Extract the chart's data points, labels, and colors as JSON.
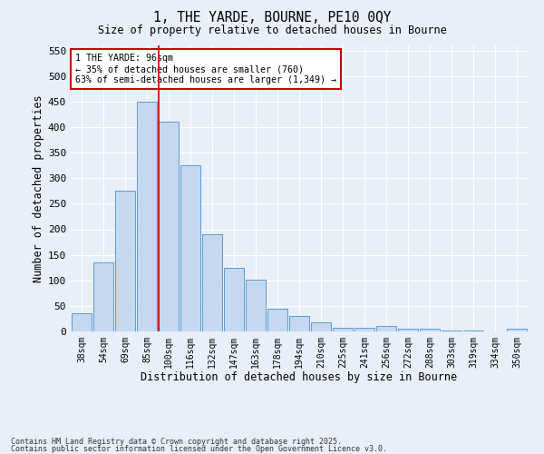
{
  "title_line1": "1, THE YARDE, BOURNE, PE10 0QY",
  "title_line2": "Size of property relative to detached houses in Bourne",
  "xlabel": "Distribution of detached houses by size in Bourne",
  "ylabel": "Number of detached properties",
  "categories": [
    "38sqm",
    "54sqm",
    "69sqm",
    "85sqm",
    "100sqm",
    "116sqm",
    "132sqm",
    "147sqm",
    "163sqm",
    "178sqm",
    "194sqm",
    "210sqm",
    "225sqm",
    "241sqm",
    "256sqm",
    "272sqm",
    "288sqm",
    "303sqm",
    "319sqm",
    "334sqm",
    "350sqm"
  ],
  "values": [
    35,
    135,
    275,
    450,
    410,
    325,
    190,
    125,
    102,
    45,
    30,
    18,
    8,
    8,
    10,
    5,
    5,
    2,
    2,
    0,
    6
  ],
  "bar_color": "#c5d8f0",
  "bar_edge_color": "#5b9bd5",
  "annotation_text": "1 THE YARDE: 96sqm\n← 35% of detached houses are smaller (760)\n63% of semi-detached houses are larger (1,349) →",
  "annotation_box_color": "#ffffff",
  "annotation_box_edge": "#cc0000",
  "vline_x": 3.55,
  "vline_color": "#cc0000",
  "ylim": [
    0,
    560
  ],
  "yticks": [
    0,
    50,
    100,
    150,
    200,
    250,
    300,
    350,
    400,
    450,
    500,
    550
  ],
  "footer_line1": "Contains HM Land Registry data © Crown copyright and database right 2025.",
  "footer_line2": "Contains public sector information licensed under the Open Government Licence v3.0.",
  "bg_color": "#e8eff8",
  "plot_bg_color": "#e8eff8"
}
